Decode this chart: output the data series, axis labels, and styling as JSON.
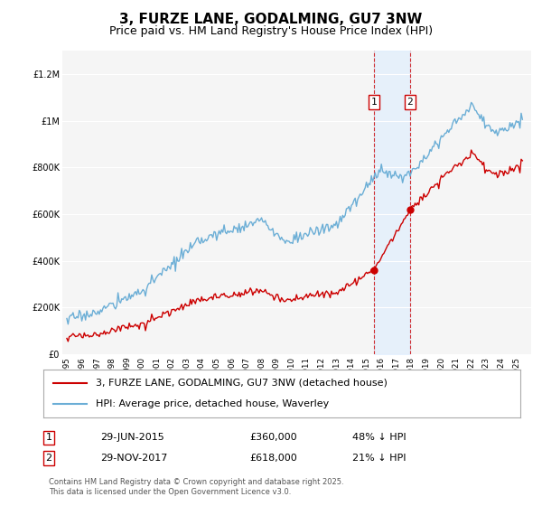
{
  "title": "3, FURZE LANE, GODALMING, GU7 3NW",
  "subtitle": "Price paid vs. HM Land Registry's House Price Index (HPI)",
  "ylim": [
    0,
    1300000
  ],
  "yticks": [
    0,
    200000,
    400000,
    600000,
    800000,
    1000000,
    1200000
  ],
  "ytick_labels": [
    "£0",
    "£200K",
    "£400K",
    "£600K",
    "£800K",
    "£1M",
    "£1.2M"
  ],
  "background_color": "#ffffff",
  "plot_bg_color": "#f5f5f5",
  "hpi_color": "#6baed6",
  "price_color": "#cc0000",
  "hpi_label": "HPI: Average price, detached house, Waverley",
  "price_label": "3, FURZE LANE, GODALMING, GU7 3NW (detached house)",
  "transaction1_date": "29-JUN-2015",
  "transaction1_price": 360000,
  "transaction1_pct": "48% ↓ HPI",
  "transaction1_x": 2015.49,
  "transaction2_date": "29-NOV-2017",
  "transaction2_price": 618000,
  "transaction2_pct": "21% ↓ HPI",
  "transaction2_x": 2017.91,
  "shade_color": "#ddeeff",
  "footer": "Contains HM Land Registry data © Crown copyright and database right 2025.\nThis data is licensed under the Open Government Licence v3.0.",
  "title_fontsize": 11,
  "subtitle_fontsize": 9,
  "tick_fontsize": 7,
  "legend_fontsize": 8
}
